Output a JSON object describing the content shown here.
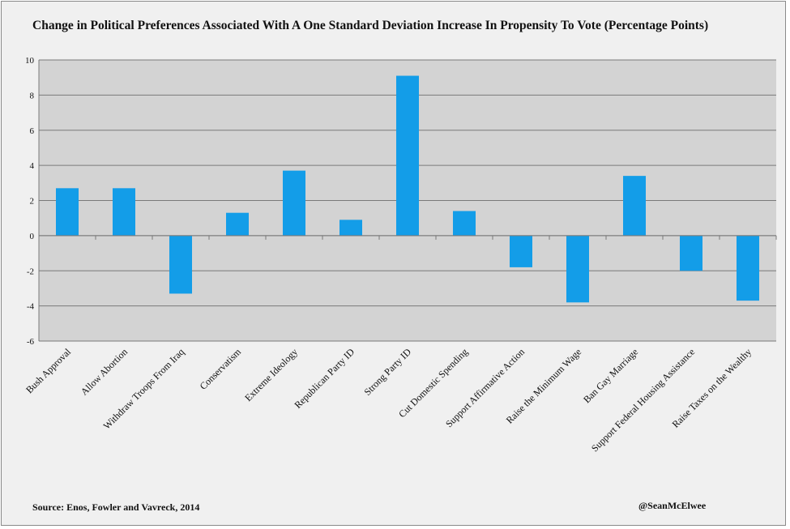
{
  "chart_data": {
    "type": "bar",
    "title": "Change in Political Preferences Associated With A One Standard Deviation Increase In Propensity To Vote (Percentage Points)",
    "xlabel": "",
    "ylabel": "",
    "ylim": [
      -6,
      10
    ],
    "yticks": [
      10,
      8,
      6,
      4,
      2,
      0,
      -2,
      -4,
      -6
    ],
    "grid": true,
    "categories": [
      "Bush Approval",
      "Allow Abortion",
      "Withdraw Troops From Iraq",
      "Conservatism",
      "Extreme Ideology",
      "Republican Party ID",
      "Strong Party ID",
      "Cut Domestic Spending",
      "Support Affirmative Action",
      "Raise the Minimum Wage",
      "Ban Gay Marriage",
      "Support Federal Housing Assistance",
      "Raise Taxes on the Wealthy"
    ],
    "values": [
      2.7,
      2.7,
      -3.3,
      1.3,
      3.7,
      0.9,
      9.1,
      1.4,
      -1.8,
      -3.8,
      3.4,
      -2.0,
      -3.7
    ],
    "bar_color": "#139de8",
    "plot_bg": "#d3d3d3"
  },
  "footer": {
    "source": "Source: Enos, Fowler and Vavreck, 2014",
    "handle": "@SeanMcElwee"
  }
}
